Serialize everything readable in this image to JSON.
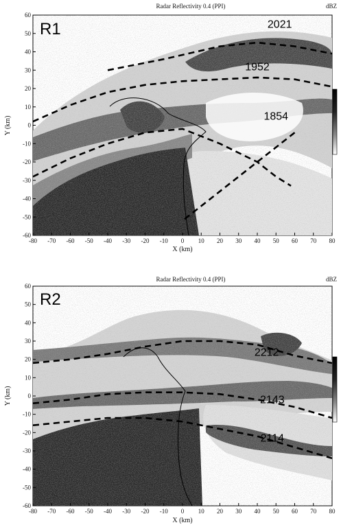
{
  "chart_data": [
    {
      "type": "heatmap",
      "title": "Radar Reflectivity 0.4 (PPI)",
      "unit": "dBZ",
      "panel_label": "R1",
      "xlabel": "X (km)",
      "ylabel": "Y (km)",
      "xlim": [
        -80,
        80
      ],
      "ylim": [
        -60,
        60
      ],
      "xticks": [
        -80,
        -70,
        -60,
        -50,
        -40,
        -30,
        -20,
        -10,
        0,
        10,
        20,
        30,
        40,
        50,
        60,
        70,
        80
      ],
      "yticks": [
        -60,
        -50,
        -40,
        -30,
        -20,
        -10,
        0,
        10,
        20,
        30,
        40,
        50,
        60
      ],
      "fronts": [
        {
          "label": "2021",
          "label_at": [
            52,
            53
          ],
          "points": [
            [
              -40,
              30
            ],
            [
              -10,
              36
            ],
            [
              20,
              43
            ],
            [
              40,
              45
            ],
            [
              60,
              43
            ],
            [
              80,
              39
            ]
          ]
        },
        {
          "label": "1952",
          "label_at": [
            40,
            30
          ],
          "points": [
            [
              -80,
              2
            ],
            [
              -60,
              11
            ],
            [
              -40,
              18
            ],
            [
              -20,
              22
            ],
            [
              0,
              24
            ],
            [
              20,
              25
            ],
            [
              40,
              26
            ],
            [
              60,
              25
            ],
            [
              80,
              21
            ]
          ]
        },
        {
          "label": "1854",
          "label_at": [
            50,
            3
          ],
          "points": [
            [
              -80,
              -28
            ],
            [
              -60,
              -18
            ],
            [
              -40,
              -10
            ],
            [
              -20,
              -4
            ],
            [
              0,
              -2
            ],
            [
              20,
              -10
            ],
            [
              40,
              -20
            ],
            [
              50,
              -28
            ],
            [
              58,
              -33
            ]
          ]
        },
        {
          "label": "",
          "label_at": null,
          "points": [
            [
              60,
              -4
            ],
            [
              50,
              -12
            ],
            [
              40,
              -20
            ],
            [
              30,
              -28
            ],
            [
              20,
              -36
            ],
            [
              10,
              -44
            ],
            [
              0,
              -52
            ]
          ]
        }
      ]
    },
    {
      "type": "heatmap",
      "title": "Radar Reflectivity 0.4 (PPI)",
      "unit": "dBZ",
      "panel_label": "R2",
      "xlabel": "X (km)",
      "ylabel": "Y (km)",
      "xlim": [
        -80,
        80
      ],
      "ylim": [
        -60,
        60
      ],
      "xticks": [
        -80,
        -70,
        -60,
        -50,
        -40,
        -30,
        -20,
        -10,
        0,
        10,
        20,
        30,
        40,
        50,
        60,
        70,
        80
      ],
      "yticks": [
        -60,
        -50,
        -40,
        -30,
        -20,
        -10,
        0,
        10,
        20,
        30,
        40,
        50,
        60
      ],
      "fronts": [
        {
          "label": "2212",
          "label_at": [
            45,
            22
          ],
          "points": [
            [
              -80,
              18
            ],
            [
              -60,
              20
            ],
            [
              -40,
              23
            ],
            [
              -20,
              27
            ],
            [
              0,
              30
            ],
            [
              20,
              30
            ],
            [
              40,
              28
            ],
            [
              60,
              22
            ],
            [
              80,
              18
            ]
          ]
        },
        {
          "label": "2143",
          "label_at": [
            48,
            -4
          ],
          "points": [
            [
              -80,
              -4
            ],
            [
              -60,
              -2
            ],
            [
              -40,
              1
            ],
            [
              -20,
              2
            ],
            [
              0,
              2
            ],
            [
              20,
              1
            ],
            [
              40,
              -2
            ],
            [
              60,
              -6
            ],
            [
              80,
              -12
            ]
          ]
        },
        {
          "label": "2114",
          "label_at": [
            48,
            -25
          ],
          "points": [
            [
              -80,
              -16
            ],
            [
              -60,
              -14
            ],
            [
              -40,
              -12
            ],
            [
              -20,
              -12
            ],
            [
              0,
              -14
            ],
            [
              20,
              -18
            ],
            [
              40,
              -22
            ],
            [
              60,
              -28
            ],
            [
              80,
              -34
            ]
          ]
        }
      ]
    }
  ]
}
